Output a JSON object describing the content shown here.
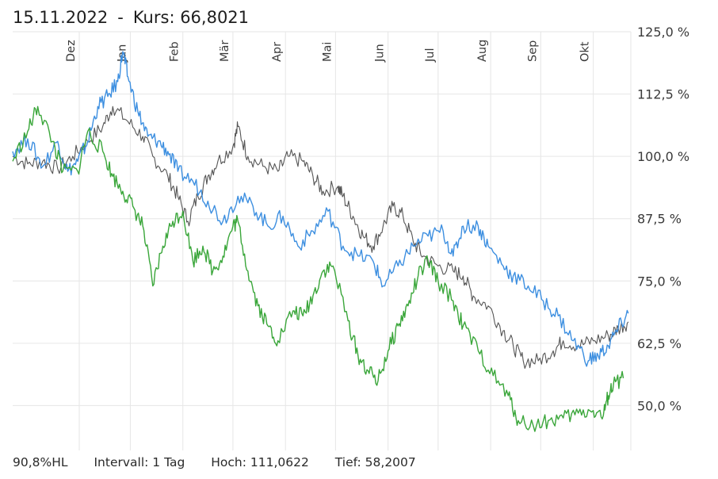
{
  "header": {
    "date": "15.11.2022",
    "separator": "-",
    "kurs": "Kurs: 66,8021"
  },
  "footer": {
    "hl": "90,8%HL",
    "interval": "Intervall: 1 Tag",
    "hoch": "Hoch: 111,0622",
    "tief": "Tief: 58,2007"
  },
  "colors": {
    "series_gray": "#555555",
    "series_blue": "#3d8fe0",
    "series_green": "#3aa63a",
    "grid": "#e6e6e6"
  },
  "chart_data": {
    "type": "line",
    "x_tick_labels": [
      "Dez",
      "Jan",
      "Feb",
      "Mär",
      "Apr",
      "Mai",
      "Jun",
      "Jul",
      "Aug",
      "Sep",
      "Okt"
    ],
    "y_tick_labels": [
      "125,0 %",
      "112,5 %",
      "100,0 %",
      "87,5 %",
      "75,0 %",
      "62,5 %",
      "50,0 %"
    ],
    "y_ticks": [
      125,
      112.5,
      100,
      87.5,
      75,
      62.5,
      50
    ],
    "ylim": [
      41,
      125
    ],
    "x_range_months": [
      0,
      12.35
    ],
    "grid": true,
    "series": [
      {
        "key": "gray",
        "points": [
          [
            0,
            100
          ],
          [
            0.3,
            98.5
          ],
          [
            0.6,
            99
          ],
          [
            0.9,
            97.5
          ],
          [
            1.2,
            100
          ],
          [
            1.5,
            103
          ],
          [
            1.8,
            106
          ],
          [
            2.0,
            110
          ],
          [
            2.3,
            107
          ],
          [
            2.6,
            104
          ],
          [
            2.8,
            100
          ],
          [
            3.1,
            96
          ],
          [
            3.3,
            92
          ],
          [
            3.5,
            87
          ],
          [
            3.7,
            92
          ],
          [
            3.9,
            96
          ],
          [
            4.1,
            99
          ],
          [
            4.4,
            102
          ],
          [
            4.5,
            106
          ],
          [
            4.7,
            100
          ],
          [
            5.0,
            98
          ],
          [
            5.3,
            97
          ],
          [
            5.5,
            100
          ],
          [
            5.8,
            99
          ],
          [
            6.0,
            96
          ],
          [
            6.2,
            93
          ],
          [
            6.5,
            94
          ],
          [
            6.6,
            92
          ],
          [
            6.8,
            88
          ],
          [
            7.0,
            84
          ],
          [
            7.2,
            82
          ],
          [
            7.4,
            86
          ],
          [
            7.6,
            90
          ],
          [
            7.8,
            88
          ],
          [
            8.0,
            83
          ],
          [
            8.2,
            80
          ],
          [
            8.5,
            78
          ],
          [
            8.8,
            77
          ],
          [
            9.0,
            76
          ],
          [
            9.2,
            72
          ],
          [
            9.5,
            70
          ],
          [
            9.8,
            65
          ],
          [
            10.0,
            62
          ],
          [
            10.2,
            59
          ],
          [
            10.5,
            59
          ],
          [
            10.8,
            61
          ],
          [
            11.0,
            63
          ],
          [
            11.3,
            62
          ],
          [
            11.6,
            63
          ],
          [
            11.9,
            64
          ],
          [
            12.1,
            65.5
          ],
          [
            12.3,
            66.8
          ]
        ]
      },
      {
        "key": "blue",
        "points": [
          [
            0,
            101
          ],
          [
            0.3,
            103.5
          ],
          [
            0.6,
            98
          ],
          [
            0.9,
            103
          ],
          [
            1.1,
            97
          ],
          [
            1.3,
            99
          ],
          [
            1.5,
            103
          ],
          [
            1.7,
            110
          ],
          [
            1.9,
            112
          ],
          [
            2.1,
            115
          ],
          [
            2.2,
            121
          ],
          [
            2.3,
            116
          ],
          [
            2.5,
            109
          ],
          [
            2.7,
            104
          ],
          [
            2.9,
            103
          ],
          [
            3.1,
            101
          ],
          [
            3.3,
            97
          ],
          [
            3.6,
            95
          ],
          [
            3.9,
            91
          ],
          [
            4.2,
            87
          ],
          [
            4.5,
            92
          ],
          [
            4.8,
            90
          ],
          [
            5.1,
            86
          ],
          [
            5.4,
            88
          ],
          [
            5.7,
            82
          ],
          [
            6.0,
            85
          ],
          [
            6.3,
            89
          ],
          [
            6.6,
            82
          ],
          [
            6.9,
            80
          ],
          [
            7.2,
            79
          ],
          [
            7.4,
            74
          ],
          [
            7.7,
            78
          ],
          [
            8.0,
            82
          ],
          [
            8.3,
            84
          ],
          [
            8.6,
            85
          ],
          [
            8.8,
            80
          ],
          [
            9.0,
            86
          ],
          [
            9.3,
            86
          ],
          [
            9.5,
            82
          ],
          [
            9.8,
            78
          ],
          [
            10.0,
            76
          ],
          [
            10.3,
            74
          ],
          [
            10.6,
            71
          ],
          [
            10.9,
            68
          ],
          [
            11.2,
            63
          ],
          [
            11.5,
            59
          ],
          [
            11.7,
            60
          ],
          [
            11.9,
            62
          ],
          [
            12.1,
            65.5
          ],
          [
            12.3,
            68.5
          ]
        ]
      },
      {
        "key": "green",
        "points": [
          [
            0,
            99
          ],
          [
            0.3,
            105
          ],
          [
            0.5,
            110
          ],
          [
            0.8,
            103
          ],
          [
            1.0,
            97
          ],
          [
            1.3,
            97
          ],
          [
            1.5,
            105
          ],
          [
            1.8,
            101
          ],
          [
            2.0,
            96
          ],
          [
            2.2,
            93
          ],
          [
            2.4,
            90
          ],
          [
            2.6,
            86
          ],
          [
            2.8,
            74
          ],
          [
            3.0,
            82
          ],
          [
            3.2,
            87
          ],
          [
            3.4,
            89
          ],
          [
            3.6,
            79
          ],
          [
            3.8,
            82
          ],
          [
            4.0,
            77
          ],
          [
            4.2,
            80
          ],
          [
            4.4,
            86
          ],
          [
            4.5,
            87
          ],
          [
            4.7,
            77
          ],
          [
            4.9,
            70
          ],
          [
            5.1,
            66
          ],
          [
            5.3,
            63
          ],
          [
            5.6,
            69
          ],
          [
            5.8,
            68
          ],
          [
            6.0,
            72
          ],
          [
            6.2,
            77
          ],
          [
            6.4,
            78
          ],
          [
            6.7,
            67
          ],
          [
            6.9,
            60
          ],
          [
            7.1,
            57
          ],
          [
            7.3,
            55
          ],
          [
            7.5,
            61
          ],
          [
            7.7,
            66
          ],
          [
            7.9,
            70
          ],
          [
            8.1,
            76
          ],
          [
            8.3,
            79
          ],
          [
            8.5,
            75
          ],
          [
            8.8,
            71
          ],
          [
            9.0,
            66
          ],
          [
            9.3,
            61
          ],
          [
            9.6,
            56
          ],
          [
            9.9,
            52
          ],
          [
            10.1,
            47
          ],
          [
            10.4,
            46
          ],
          [
            10.7,
            47
          ],
          [
            11.0,
            47.5
          ],
          [
            11.3,
            48.5
          ],
          [
            11.6,
            49
          ],
          [
            11.8,
            48
          ],
          [
            11.9,
            52
          ],
          [
            12.0,
            54
          ],
          [
            12.2,
            55.5
          ]
        ]
      }
    ]
  }
}
